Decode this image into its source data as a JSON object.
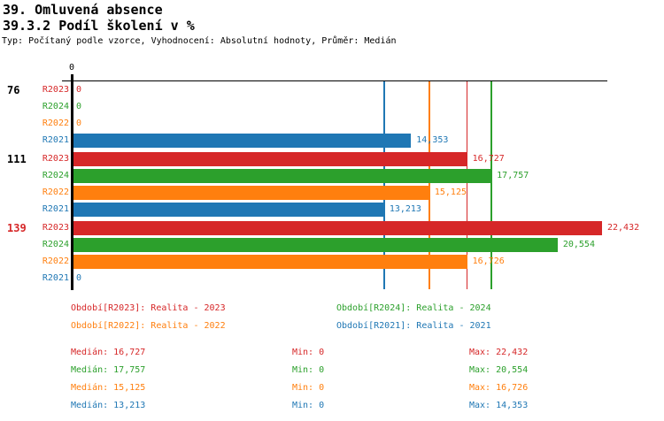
{
  "header": {
    "title1": "39. Omluvená absence",
    "title2": "39.3.2 Podíl školení v %",
    "subtitle": "Typ: Počítaný podle vzorce, Vyhodnocení: Absolutní hodnoty, Průměr: Medián"
  },
  "colors": {
    "R2023": "#d62728",
    "R2024": "#2ca02c",
    "R2022": "#ff7f0e",
    "R2021": "#1f77b4",
    "axis": "#000000",
    "group_label_default": "#000000",
    "group_label_highlight": "#d62728"
  },
  "chart_data": {
    "type": "bar",
    "orientation": "horizontal",
    "title": "39.3.2 Podíl školení v %",
    "axis": {
      "zero_label": "0",
      "min": 0,
      "approx_max": 24800,
      "grid": false
    },
    "series_order": [
      "R2023",
      "R2024",
      "R2022",
      "R2021"
    ],
    "groups": [
      {
        "label": "76",
        "highlighted": false,
        "bars": [
          {
            "series": "R2023",
            "value": 0,
            "display": "0"
          },
          {
            "series": "R2024",
            "value": 0,
            "display": "0"
          },
          {
            "series": "R2022",
            "value": 0,
            "display": "0"
          },
          {
            "series": "R2021",
            "value": 14353,
            "display": "14,353"
          }
        ]
      },
      {
        "label": "111",
        "highlighted": false,
        "bars": [
          {
            "series": "R2023",
            "value": 16727,
            "display": "16,727"
          },
          {
            "series": "R2024",
            "value": 17757,
            "display": "17,757"
          },
          {
            "series": "R2022",
            "value": 15125,
            "display": "15,125"
          },
          {
            "series": "R2021",
            "value": 13213,
            "display": "13,213"
          }
        ]
      },
      {
        "label": "139",
        "highlighted": true,
        "bars": [
          {
            "series": "R2023",
            "value": 22432,
            "display": "22,432"
          },
          {
            "series": "R2024",
            "value": 20554,
            "display": "20,554"
          },
          {
            "series": "R2022",
            "value": 16726,
            "display": "16,726"
          },
          {
            "series": "R2021",
            "value": 0,
            "display": "0"
          }
        ]
      }
    ],
    "median_lines": [
      {
        "series": "R2023",
        "value": 16727
      },
      {
        "series": "R2024",
        "value": 17757
      },
      {
        "series": "R2022",
        "value": 15125
      },
      {
        "series": "R2021",
        "value": 13213
      }
    ],
    "legend_position": "bottom"
  },
  "legend": {
    "items": [
      {
        "series": "R2023",
        "text": "Období[R2023]: Realita - 2023",
        "col": 0,
        "row": 0
      },
      {
        "series": "R2024",
        "text": "Období[R2024]: Realita - 2024",
        "col": 1,
        "row": 0
      },
      {
        "series": "R2022",
        "text": "Období[R2022]: Realita - 2022",
        "col": 0,
        "row": 1
      },
      {
        "series": "R2021",
        "text": "Období[R2021]: Realita - 2021",
        "col": 1,
        "row": 1
      }
    ]
  },
  "stats": {
    "rows": [
      {
        "series": "R2023",
        "median": "Medián: 16,727",
        "min": "Min: 0",
        "max": "Max: 22,432"
      },
      {
        "series": "R2024",
        "median": "Medián: 17,757",
        "min": "Min: 0",
        "max": "Max: 20,554"
      },
      {
        "series": "R2022",
        "median": "Medián: 15,125",
        "min": "Min: 0",
        "max": "Max: 16,726"
      },
      {
        "series": "R2021",
        "median": "Medián: 13,213",
        "min": "Min: 0",
        "max": "Max: 14,353"
      }
    ]
  }
}
